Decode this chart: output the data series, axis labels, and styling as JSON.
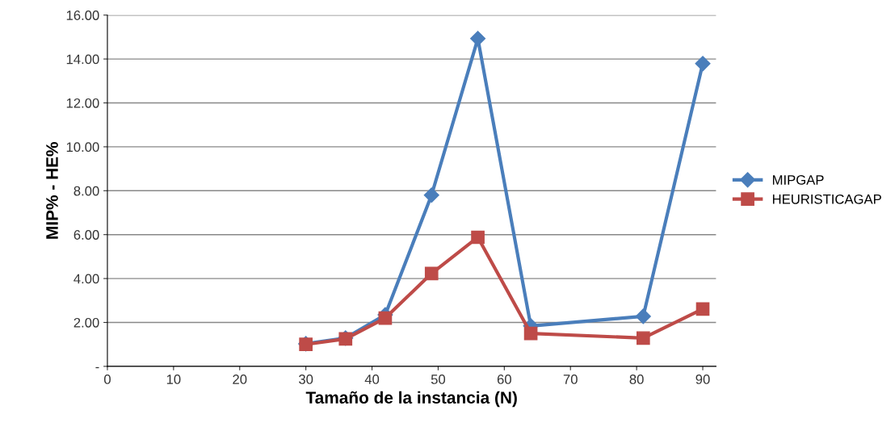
{
  "chart_data": {
    "type": "line",
    "xlabel": "Tamaño de la instancia (N)",
    "ylabel": "MIP% - HE%",
    "x": [
      30,
      36,
      42,
      49,
      56,
      64,
      81,
      90
    ],
    "series": [
      {
        "name": "MIPGAP",
        "color": "#4a7ebb",
        "marker": "diamond",
        "values": [
          1.03,
          1.29,
          2.35,
          7.8,
          14.93,
          1.84,
          2.28,
          13.79
        ]
      },
      {
        "name": "HEURISTICAGAP",
        "color": "#be4b48",
        "marker": "square",
        "values": [
          1.0,
          1.25,
          2.2,
          4.23,
          5.88,
          1.5,
          1.29,
          2.61
        ]
      }
    ],
    "xlim": [
      0,
      92
    ],
    "xticks": [
      0,
      10,
      20,
      30,
      40,
      50,
      60,
      70,
      80,
      90
    ],
    "ylim": [
      0,
      16
    ],
    "yticks": [
      {
        "value": 0,
        "label": "-"
      },
      {
        "value": 2,
        "label": "2.00"
      },
      {
        "value": 4,
        "label": "4.00"
      },
      {
        "value": 6,
        "label": "6.00"
      },
      {
        "value": 8,
        "label": "8.00"
      },
      {
        "value": 10,
        "label": "10.00"
      },
      {
        "value": 12,
        "label": "12.00"
      },
      {
        "value": 14,
        "label": "14.00"
      },
      {
        "value": 16,
        "label": "16.00"
      }
    ],
    "grid": "y",
    "legend": "right",
    "line_style": "solid"
  }
}
